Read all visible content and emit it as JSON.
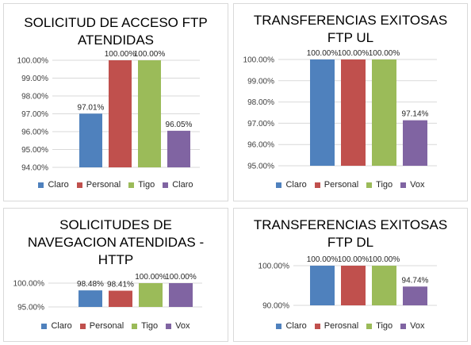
{
  "colors": {
    "blue": "#4f81bd",
    "red": "#c0504d",
    "green": "#9bbb59",
    "purple": "#8064a2"
  },
  "chart_data": [
    {
      "type": "bar",
      "title": "SOLICITUD DE ACCESO FTP\nATENDIDAS",
      "categories": [
        "Claro",
        "Personal",
        "Tigo",
        "Claro"
      ],
      "values": [
        97.01,
        100.0,
        100.0,
        96.05
      ],
      "data_labels": [
        "97.01%",
        "100.00%",
        "100.00%",
        "96.05%"
      ],
      "ylim": [
        94,
        100
      ],
      "yticks": [
        "94.00%",
        "95.00%",
        "96.00%",
        "97.00%",
        "98.00%",
        "99.00%",
        "100.00%"
      ],
      "legend": [
        "Claro",
        "Personal",
        "Tigo",
        "Claro"
      ],
      "legend_position": "bottom"
    },
    {
      "type": "bar",
      "title": "TRANSFERENCIAS EXITOSAS\nFTP UL",
      "categories": [
        "Claro",
        "Personal",
        "Tigo",
        "Vox"
      ],
      "values": [
        100.0,
        100.0,
        100.0,
        97.14
      ],
      "data_labels": [
        "100.00%",
        "100.00%",
        "100.00%",
        "97.14%"
      ],
      "ylim": [
        95,
        100
      ],
      "yticks": [
        "95.00%",
        "96.00%",
        "97.00%",
        "98.00%",
        "99.00%",
        "100.00%"
      ],
      "legend": [
        "Claro",
        "Personal",
        "Tigo",
        "Vox"
      ],
      "legend_position": "bottom"
    },
    {
      "type": "bar",
      "title": "SOLICITUDES DE\nNAVEGACION ATENDIDAS -\nHTTP",
      "categories": [
        "Claro",
        "Personal",
        "Tigo",
        "Vox"
      ],
      "values": [
        98.48,
        98.41,
        100.0,
        100.0
      ],
      "data_labels": [
        "98.48%",
        "98.41%",
        "100.00%",
        "100.00%"
      ],
      "ylim": [
        95,
        100
      ],
      "yticks": [
        "95.00%",
        "100.00%"
      ],
      "legend": [
        "Claro",
        "Personal",
        "Tigo",
        "Vox"
      ],
      "legend_position": "bottom"
    },
    {
      "type": "bar",
      "title": "TRANSFERENCIAS EXITOSAS\nFTP DL",
      "categories": [
        "Claro",
        "Perosnal",
        "Tigo",
        "Vox"
      ],
      "values": [
        100.0,
        100.0,
        100.0,
        94.74
      ],
      "data_labels": [
        "100.00%",
        "100.00%",
        "100.00%",
        "94.74%"
      ],
      "ylim": [
        90,
        100
      ],
      "yticks": [
        "90.00%",
        "100.00%"
      ],
      "legend": [
        "Claro",
        "Perosnal",
        "Tigo",
        "Vox"
      ],
      "legend_position": "bottom"
    }
  ]
}
